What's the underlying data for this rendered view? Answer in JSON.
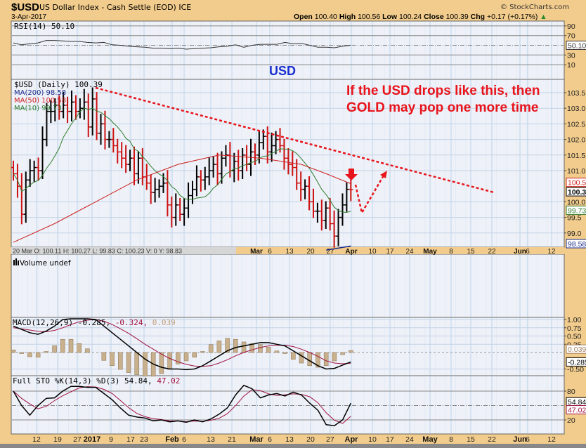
{
  "header": {
    "symbol": "$USD",
    "name": "US Dollar Index - Cash Settle (EOD) ICE",
    "date": "3-Apr-2017",
    "watermark": "© StockCharts.com",
    "open_label": "Open",
    "open": "100.40",
    "high_label": "High",
    "high": "100.56",
    "low_label": "Low",
    "low": "100.24",
    "close_label": "Close",
    "close": "100.39",
    "chg_label": "Chg",
    "chg": "+0.17 (+0.17%)"
  },
  "annotations": {
    "usd_label": "USD",
    "note_line1": "If the USD drops like this, then",
    "note_line2": "GOLD may pop one more time",
    "colors": {
      "note": "#e8141c",
      "usd": "#1a2fd0"
    }
  },
  "rsi_panel": {
    "legend": "RSI(14) 50.10",
    "ticks": [
      "90",
      "70",
      "30",
      "10"
    ],
    "current": "50.10"
  },
  "price_panel": {
    "legend": "$USD (Daily) 100.39",
    "ma200": "MA(200) 98.58",
    "ma50": "MA(50) 100.58",
    "ma10": "MA(10) 99.73",
    "ticks": [
      "103.5",
      "103.0",
      "102.5",
      "102.0",
      "101.5",
      "101.0",
      "100.0",
      "99.5",
      "99.0"
    ],
    "tag_ma50": "100.58",
    "tag_close": "100.39",
    "tag_ma10": "99.73",
    "tag_ma200": "98.58",
    "colors": {
      "up": "#000000",
      "down": "#cc1111",
      "ma10": "#2e7d2e",
      "ma50": "#cc2020",
      "ma200": "#1a2a8a"
    }
  },
  "info_bar": "20 Mar O: 100.11   H: 100.27   L: 99.83   C: 100.23   V: 0   Y: 98.83",
  "top_axis": [
    "Mar",
    "6",
    "13",
    "20",
    "27",
    "Apr",
    "10",
    "17",
    "24",
    "May",
    "8",
    "15",
    "22",
    "Jun",
    "6",
    "12"
  ],
  "volume_panel": {
    "legend": "Volume undef"
  },
  "macd_panel": {
    "legend_main": "MACD(12,26,9) -0.285,",
    "legend_signal": "-0.324,",
    "legend_hist": "0.039",
    "ticks": [
      "1.00",
      "0.75",
      "0.50",
      "0.25",
      "-0.50"
    ],
    "tag_hist": "0.039",
    "tag_macd": "-0.285"
  },
  "sto_panel": {
    "legend_main": "Full STO %K(14,3) %D(3) 54.84,",
    "legend_d": "47.02",
    "ticks": [
      "80",
      "20"
    ],
    "tag_k": "54.84",
    "tag_d": "47.02"
  },
  "bottom_axis": [
    "12",
    "19",
    "27",
    "2017",
    "9",
    "17",
    "23",
    "Feb",
    "6",
    "13",
    "21",
    "Mar",
    "6",
    "13",
    "20",
    "27",
    "Apr",
    "10",
    "17",
    "24",
    "May",
    "8",
    "15",
    "22",
    "Jun",
    "6",
    "12"
  ],
  "chart_data": {
    "type": "ohlc",
    "title": "$USD US Dollar Index - Cash Settle (EOD) ICE",
    "x_range": [
      "2016-12-05",
      "2017-04-03"
    ],
    "ylim": [
      98.5,
      103.8
    ],
    "closes": [
      100.9,
      100.5,
      99.6,
      100.7,
      101.0,
      101.1,
      101.0,
      102.0,
      102.9,
      102.9,
      103.1,
      102.9,
      103.1,
      102.9,
      103.2,
      102.9,
      103.0,
      103.2,
      102.4,
      103.3,
      102.2,
      102.5,
      102.0,
      102.0,
      101.8,
      101.6,
      101.4,
      101.2,
      101.4,
      100.9,
      101.4,
      100.8,
      100.6,
      100.3,
      100.4,
      100.5,
      100.6,
      99.9,
      99.5,
      99.9,
      99.6,
      99.8,
      100.2,
      100.4,
      100.8,
      100.7,
      100.8,
      101.0,
      101.2,
      100.9,
      101.4,
      101.5,
      101.0,
      101.3,
      101.0,
      101.5,
      101.2,
      101.6,
      101.5,
      101.9,
      102.1,
      101.6,
      101.8,
      102.0,
      101.8,
      101.4,
      101.2,
      101.1,
      100.6,
      100.4,
      100.5,
      100.0,
      99.7,
      99.7,
      99.4,
      99.8,
      99.3,
      98.9,
      99.5,
      99.9,
      100.4,
      100.39
    ],
    "ma50_anchors": [
      [
        0,
        98.7
      ],
      [
        10,
        99.3
      ],
      [
        20,
        100.0
      ],
      [
        30,
        100.7
      ],
      [
        40,
        101.2
      ],
      [
        50,
        101.5
      ],
      [
        60,
        101.4
      ],
      [
        70,
        101.2
      ],
      [
        76,
        100.9
      ],
      [
        82,
        100.58
      ]
    ],
    "ma200_anchors": [
      [
        76,
        98.45
      ],
      [
        82,
        98.58
      ]
    ],
    "rsi": [
      55,
      51,
      53,
      55,
      60,
      60,
      59,
      58,
      58,
      56,
      55,
      56,
      51,
      50,
      48,
      47,
      46,
      44,
      44,
      43,
      44,
      42,
      43,
      44,
      45,
      47,
      48,
      51,
      46,
      50,
      52,
      52,
      52,
      56,
      53,
      54,
      50,
      46,
      46,
      45,
      48,
      50.1
    ],
    "macd": [
      0.8,
      0.7,
      0.6,
      0.55,
      0.65,
      0.8,
      1.0,
      1.1,
      1.1,
      1.05,
      1.0,
      0.8,
      0.6,
      0.4,
      0.2,
      0.0,
      -0.2,
      -0.35,
      -0.45,
      -0.5,
      -0.5,
      -0.52,
      -0.5,
      -0.4,
      -0.25,
      -0.1,
      0.05,
      0.15,
      0.2,
      0.25,
      0.3,
      0.3,
      0.25,
      0.2,
      0.05,
      -0.1,
      -0.25,
      -0.4,
      -0.5,
      -0.48,
      -0.38,
      -0.285
    ],
    "signal": [
      0.75,
      0.72,
      0.68,
      0.64,
      0.63,
      0.67,
      0.75,
      0.85,
      0.93,
      0.98,
      1.0,
      0.95,
      0.85,
      0.72,
      0.58,
      0.42,
      0.25,
      0.1,
      -0.05,
      -0.18,
      -0.28,
      -0.36,
      -0.41,
      -0.42,
      -0.4,
      -0.32,
      -0.22,
      -0.1,
      0.0,
      0.08,
      0.15,
      0.2,
      0.22,
      0.22,
      0.18,
      0.1,
      0.0,
      -0.12,
      -0.25,
      -0.32,
      -0.34,
      -0.324
    ],
    "sto_k": [
      80,
      50,
      30,
      50,
      65,
      66,
      80,
      90,
      90,
      88,
      88,
      75,
      62,
      45,
      30,
      26,
      24,
      18,
      20,
      16,
      18,
      15,
      20,
      16,
      22,
      32,
      45,
      72,
      92,
      85,
      66,
      72,
      75,
      70,
      78,
      72,
      55,
      40,
      10,
      8,
      20,
      54.84
    ]
  }
}
